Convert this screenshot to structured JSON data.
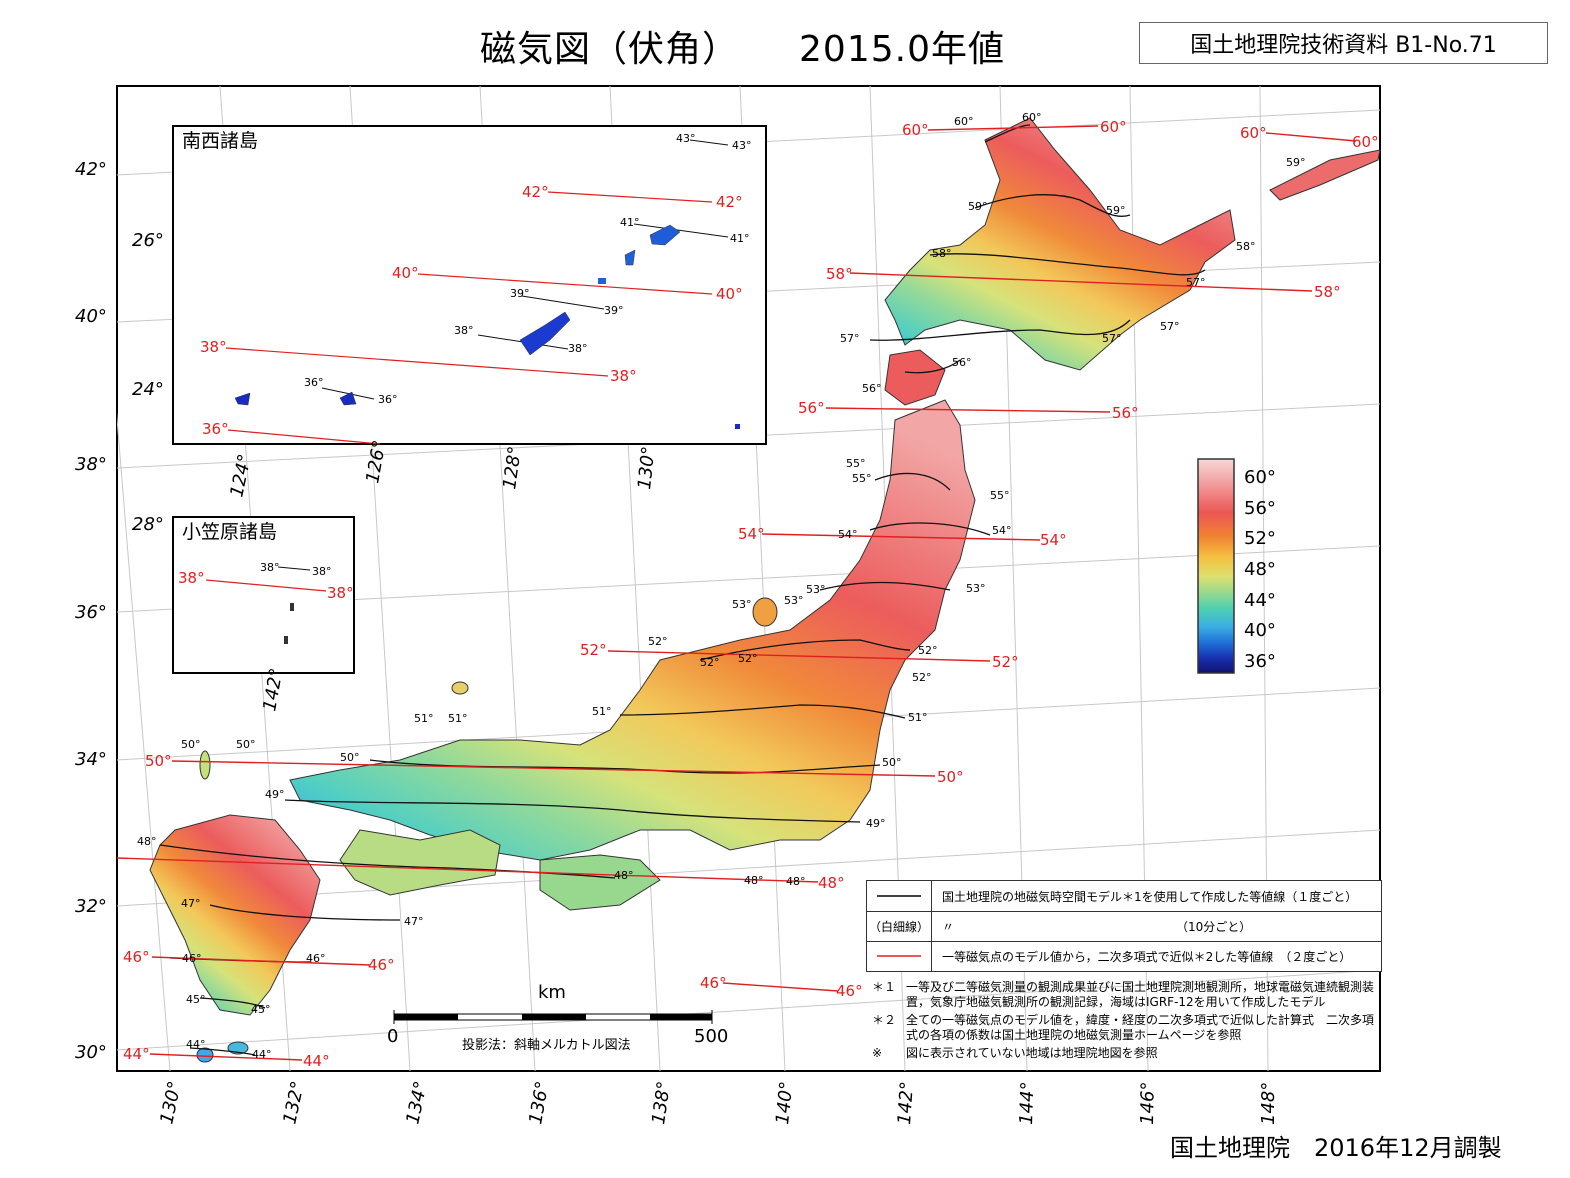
{
  "header": {
    "title": "磁気図（伏角）",
    "year": "2015.0年値",
    "reference": "国土地理院技術資料  B1-No.71"
  },
  "footer": "国土地理院　2016年12月調製",
  "insets": {
    "nansei": "南西諸島",
    "ogasawara": "小笠原諸島"
  },
  "axes": {
    "lat_left": [
      "42°",
      "40°",
      "38°",
      "36°",
      "34°",
      "32°",
      "30°"
    ],
    "lon_bottom": [
      "130°",
      "132°",
      "134°",
      "136°",
      "138°",
      "140°",
      "142°",
      "144°",
      "146°",
      "148°"
    ],
    "inset_lat": [
      "26°",
      "24°",
      "28°"
    ],
    "inset_lon": [
      "124°",
      "126°",
      "128°",
      "130°",
      "142°"
    ]
  },
  "colorbar": {
    "labels": [
      "60°",
      "56°",
      "52°",
      "48°",
      "44°",
      "40°",
      "36°"
    ],
    "stops": [
      "#f6d8d8",
      "#f2a0a0",
      "#ec5a5a",
      "#f08030",
      "#f6c040",
      "#e0e070",
      "#90d890",
      "#50d0b0",
      "#40b0e0",
      "#2070d8",
      "#1830b0",
      "#101070"
    ]
  },
  "red_labels": {
    "l60a": "60°",
    "l60b": "60°",
    "l60c": "60°",
    "l60d": "60°",
    "l58a": "58°",
    "l58b": "58°",
    "l56a": "56°",
    "l56b": "56°",
    "l54a": "54°",
    "l54b": "54°",
    "l52a": "52°",
    "l52b": "52°",
    "l50a": "50°",
    "l50b": "50°",
    "l48a": "48°",
    "l46a": "46°",
    "l46b": "46°",
    "l46c": "46°",
    "l46d": "46°",
    "l44a": "44°",
    "l44b": "44°",
    "i42a": "42°",
    "i42b": "42°",
    "i40a": "40°",
    "i40b": "40°",
    "i38a": "38°",
    "i38b": "38°",
    "i36a": "36°",
    "o38a": "38°",
    "o38b": "38°"
  },
  "black_labels": {
    "b60a": "60°",
    "b60b": "60°",
    "b59a": "59°",
    "b59b": "59°",
    "b59c": "59°",
    "b58a": "58°",
    "b58b": "58°",
    "b57a": "57°",
    "b57b": "57°",
    "b57c": "57°",
    "b57d": "57°",
    "b56a": "56°",
    "b56b": "56°",
    "b55a": "55°",
    "b55b": "55°",
    "b55c": "55°",
    "b54a": "54°",
    "b54b": "54°",
    "b53a": "53°",
    "b53b": "53°",
    "b53c": "53°",
    "b53d": "53°",
    "b52a": "52°",
    "b52b": "52°",
    "b52c": "52°",
    "b52d": "52°",
    "b52e": "52°",
    "b51a": "51°",
    "b51b": "51°",
    "b51c": "51°",
    "b51d": "51°",
    "b50a": "50°",
    "b50b": "50°",
    "b50c": "50°",
    "b50d": "50°",
    "b49a": "49°",
    "b49b": "49°",
    "b48a": "48°",
    "b48b": "48°",
    "b48c": "48°",
    "b48d": "48°",
    "b47a": "47°",
    "b47b": "47°",
    "b46a": "46°",
    "b46b": "46°",
    "b45a": "45°",
    "b45b": "45°",
    "b44a": "44°",
    "b44b": "44°",
    "i43a": "43°",
    "i43b": "43°",
    "i41a": "41°",
    "i41b": "41°",
    "i39a": "39°",
    "i39b": "39°",
    "i38c": "38°",
    "i38d": "38°",
    "i36b": "36°",
    "i36c": "36°",
    "o38c": "38°",
    "o38d": "38°"
  },
  "scale": {
    "unit": "km",
    "start": "0",
    "end": "500",
    "projection": "投影法：斜軸メルカトル図法"
  },
  "legend": {
    "row1_sym": "",
    "row1": "国土地理院の地磁気時空間モデル＊1を使用して作成した等値線（１度ごと）",
    "row2_sym": "（白細線）",
    "row2": "〃　　　　　　　　　　　　　　　　　　　（10分ごと）",
    "row3_sym": "",
    "row3": "一等磁気点のモデル値から，二次多項式で近似＊2した等値線　（２度ごと）"
  },
  "notes": [
    {
      "key": "＊１",
      "text": "一等及び二等磁気測量の観測成果並びに国土地理院測地観測所，地球電磁気連続観測装置，気象庁地磁気観測所の観測記録，海域はIGRF-12を用いて作成したモデル"
    },
    {
      "key": "＊２",
      "text": "全ての一等磁気点のモデル値を，緯度・経度の二次多項式で近似した計算式　二次多項式の各項の係数は国土地理院の地磁気測量ホームページを参照"
    },
    {
      "key": "※",
      "text": "図に表示されていない地域は地理院地図を参照"
    }
  ]
}
